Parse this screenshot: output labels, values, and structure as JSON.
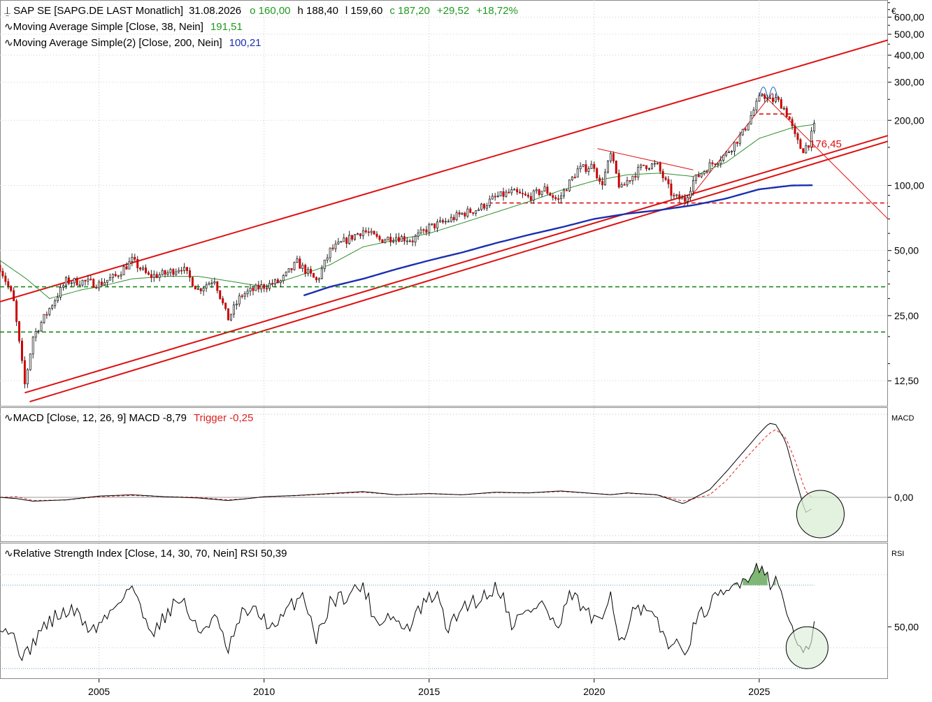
{
  "header": {
    "currency": "€",
    "symbol_title": "SAP SE [SAPG.DE LAST Monatlich]",
    "date": "31.08.2026",
    "open": "o 160,00",
    "high": "h 188,40",
    "low": "l 159,60",
    "close": "c 187,20",
    "change": "+29,52",
    "change_pct": "+18,72%"
  },
  "indicators": {
    "ma1_label": "Moving Average Simple  [Close, 38, Nein]",
    "ma1_value": "191,51",
    "ma2_label": "Moving Average Simple(2)  [Close, 200, Nein]",
    "ma2_value": "100,21",
    "macd_label": "MACD  [Close, 12, 26, 9]  MACD -8,79",
    "macd_trigger": "Trigger -0,25",
    "macd_axis_label": "MACD",
    "rsi_label": "Relative Strength Index  [Close, 14, 30, 70, Nein]  RSI 50,39",
    "rsi_axis_label": "RSI"
  },
  "annotations": {
    "price_label": "176,45"
  },
  "colors": {
    "price_up": "#22aa22",
    "price_down": "#cc0000",
    "ma38": "#2f8f2f",
    "ma200": "#1a2fb0",
    "trend": "#dd1111",
    "support": "#1a8a1a",
    "macd": "#000000",
    "trigger": "#dd2222",
    "circle_fill": "#d9ecd4",
    "rsi_fill": "#6aaa5e"
  },
  "chart_data": [
    {
      "type": "candlestick",
      "title": "SAP SE [SAPG.DE LAST Monatlich]",
      "y_scale": "log",
      "ylim": [
        9.5,
        720
      ],
      "y_ticks": [
        "600,00",
        "500,00",
        "400,00",
        "300,00",
        "200,00",
        "100,00",
        "50,00",
        "25,00",
        "12,50"
      ],
      "y_tick_values": [
        600,
        500,
        400,
        300,
        200,
        100,
        50,
        25,
        12.5
      ],
      "x_ticks": [
        "2005",
        "2010",
        "2015",
        "2020",
        "2025"
      ],
      "x_tick_values": [
        2005,
        2010,
        2015,
        2020,
        2025
      ],
      "xlim": [
        2002.0,
        2028.9
      ],
      "close_anchors": [
        [
          2002.0,
          42
        ],
        [
          2002.4,
          30
        ],
        [
          2002.75,
          12
        ],
        [
          2003.0,
          20
        ],
        [
          2003.5,
          27
        ],
        [
          2004.0,
          36
        ],
        [
          2004.5,
          36
        ],
        [
          2005.0,
          35
        ],
        [
          2005.5,
          38
        ],
        [
          2006.0,
          45
        ],
        [
          2006.5,
          38
        ],
        [
          2007.0,
          39
        ],
        [
          2007.5,
          42
        ],
        [
          2008.0,
          33
        ],
        [
          2008.5,
          37
        ],
        [
          2008.9,
          24
        ],
        [
          2009.3,
          31
        ],
        [
          2009.9,
          34
        ],
        [
          2010.5,
          36
        ],
        [
          2011.0,
          44
        ],
        [
          2011.6,
          36
        ],
        [
          2012.0,
          50
        ],
        [
          2012.5,
          56
        ],
        [
          2013.0,
          62
        ],
        [
          2013.5,
          56
        ],
        [
          2014.0,
          58
        ],
        [
          2014.5,
          56
        ],
        [
          2015.0,
          64
        ],
        [
          2015.5,
          68
        ],
        [
          2016.0,
          74
        ],
        [
          2016.5,
          78
        ],
        [
          2017.0,
          88
        ],
        [
          2017.5,
          93
        ],
        [
          2018.0,
          88
        ],
        [
          2018.5,
          96
        ],
        [
          2018.9,
          85
        ],
        [
          2019.5,
          118
        ],
        [
          2020.0,
          124
        ],
        [
          2020.2,
          98
        ],
        [
          2020.5,
          138
        ],
        [
          2020.8,
          95
        ],
        [
          2021.0,
          105
        ],
        [
          2021.5,
          124
        ],
        [
          2021.9,
          124
        ],
        [
          2022.4,
          88
        ],
        [
          2022.75,
          86
        ],
        [
          2023.0,
          105
        ],
        [
          2023.5,
          124
        ],
        [
          2024.0,
          140
        ],
        [
          2024.5,
          175
        ],
        [
          2024.8,
          218
        ],
        [
          2025.1,
          268
        ],
        [
          2025.3,
          245
        ],
        [
          2025.5,
          250
        ],
        [
          2025.7,
          235
        ],
        [
          2025.9,
          205
        ],
        [
          2026.1,
          165
        ],
        [
          2026.3,
          145
        ],
        [
          2026.5,
          157
        ],
        [
          2026.67,
          187.2
        ]
      ],
      "ma38_anchors": [
        [
          2002.0,
          45
        ],
        [
          2002.8,
          37
        ],
        [
          2003.5,
          30
        ],
        [
          2004.5,
          33
        ],
        [
          2005.0,
          34
        ],
        [
          2006.0,
          37
        ],
        [
          2007.0,
          38
        ],
        [
          2008.0,
          38
        ],
        [
          2009.0,
          36
        ],
        [
          2010.0,
          34
        ],
        [
          2011.0,
          38
        ],
        [
          2012.0,
          43
        ],
        [
          2013.0,
          52
        ],
        [
          2014.0,
          56
        ],
        [
          2015.0,
          60
        ],
        [
          2016.0,
          67
        ],
        [
          2017.0,
          75
        ],
        [
          2018.0,
          84
        ],
        [
          2019.0,
          95
        ],
        [
          2020.0,
          105
        ],
        [
          2021.0,
          112
        ],
        [
          2022.0,
          114
        ],
        [
          2023.0,
          110
        ],
        [
          2024.0,
          128
        ],
        [
          2025.0,
          165
        ],
        [
          2026.0,
          185
        ],
        [
          2026.67,
          191.5
        ]
      ],
      "ma200_anchors": [
        [
          2011.2,
          31
        ],
        [
          2012.0,
          34
        ],
        [
          2013.0,
          37
        ],
        [
          2014.0,
          41
        ],
        [
          2015.0,
          45
        ],
        [
          2016.0,
          49
        ],
        [
          2017.0,
          54
        ],
        [
          2018.0,
          59
        ],
        [
          2019.0,
          64
        ],
        [
          2020.0,
          70
        ],
        [
          2021.0,
          74
        ],
        [
          2022.0,
          77
        ],
        [
          2023.0,
          81
        ],
        [
          2024.0,
          87
        ],
        [
          2025.0,
          96
        ],
        [
          2026.0,
          100
        ],
        [
          2026.67,
          100.2
        ]
      ],
      "channel_upper": [
        [
          2002.0,
          29
        ],
        [
          2028.9,
          470
        ]
      ],
      "channel_lower_a": [
        [
          2002.75,
          11
        ],
        [
          2028.9,
          170
        ]
      ],
      "channel_lower_b": [
        [
          2002.9,
          10
        ],
        [
          2028.9,
          160
        ]
      ],
      "triangle_upper": [
        [
          2020.1,
          148
        ],
        [
          2023.0,
          118
        ]
      ],
      "triangle_lower": [
        [
          2022.7,
          80
        ],
        [
          2025.4,
          268
        ]
      ],
      "breakdown_line": [
        [
          2025.1,
          265
        ],
        [
          2028.9,
          70
        ]
      ],
      "neckline": [
        [
          2025.0,
          214
        ],
        [
          2026.0,
          214
        ]
      ],
      "resistance_dashed": 83,
      "support_dashed": [
        34,
        21
      ],
      "price_label_value": 176.45
    },
    {
      "type": "line",
      "title": "MACD [Close, 12, 26, 9]",
      "zero_tick": "0,00",
      "macd_anchors": [
        [
          2002.0,
          0.0
        ],
        [
          2002.5,
          -1
        ],
        [
          2003.0,
          -3
        ],
        [
          2004.0,
          -2
        ],
        [
          2005.0,
          1
        ],
        [
          2006.0,
          2
        ],
        [
          2007.0,
          0.5
        ],
        [
          2008.0,
          -0.5
        ],
        [
          2008.9,
          -2.5
        ],
        [
          2009.5,
          -1
        ],
        [
          2010.0,
          0.5
        ],
        [
          2011.0,
          1.5
        ],
        [
          2012.0,
          3
        ],
        [
          2013.0,
          4.5
        ],
        [
          2014.0,
          2
        ],
        [
          2015.0,
          3
        ],
        [
          2016.0,
          2
        ],
        [
          2017.0,
          4
        ],
        [
          2018.0,
          3.5
        ],
        [
          2019.0,
          5
        ],
        [
          2020.0,
          3
        ],
        [
          2020.5,
          2
        ],
        [
          2021.0,
          3.5
        ],
        [
          2021.9,
          2
        ],
        [
          2022.7,
          -5
        ],
        [
          2023.5,
          6
        ],
        [
          2024.0,
          20
        ],
        [
          2024.5,
          35
        ],
        [
          2025.0,
          50
        ],
        [
          2025.3,
          58
        ],
        [
          2025.5,
          57
        ],
        [
          2025.8,
          44
        ],
        [
          2026.1,
          15
        ],
        [
          2026.4,
          -12
        ],
        [
          2026.6,
          -8.79
        ]
      ],
      "trigger_anchors": [
        [
          2002.0,
          0.0
        ],
        [
          2002.5,
          0.5
        ],
        [
          2003.0,
          -2.5
        ],
        [
          2004.0,
          -2
        ],
        [
          2005.0,
          0.5
        ],
        [
          2006.0,
          1.5
        ],
        [
          2007.0,
          0.5
        ],
        [
          2008.0,
          0
        ],
        [
          2008.9,
          -2
        ],
        [
          2009.5,
          -1
        ],
        [
          2010.0,
          0.5
        ],
        [
          2011.0,
          1.3
        ],
        [
          2012.0,
          2.7
        ],
        [
          2013.0,
          4
        ],
        [
          2014.0,
          2
        ],
        [
          2015.0,
          2.8
        ],
        [
          2016.0,
          2
        ],
        [
          2017.0,
          3.7
        ],
        [
          2018.0,
          3.4
        ],
        [
          2019.0,
          4.6
        ],
        [
          2020.0,
          3
        ],
        [
          2020.5,
          2.2
        ],
        [
          2021.0,
          3.2
        ],
        [
          2021.9,
          2
        ],
        [
          2022.7,
          -3
        ],
        [
          2023.5,
          2
        ],
        [
          2024.0,
          13
        ],
        [
          2024.5,
          28
        ],
        [
          2025.0,
          42
        ],
        [
          2025.3,
          50
        ],
        [
          2025.5,
          53
        ],
        [
          2025.8,
          47
        ],
        [
          2026.1,
          28
        ],
        [
          2026.4,
          5
        ],
        [
          2026.6,
          -0.25
        ]
      ],
      "ylim": [
        -35,
        70
      ]
    },
    {
      "type": "line",
      "title": "Relative Strength Index [Close, 14, 30, 70, Nein]",
      "y_tick": "50,00",
      "y_tick_value": 50,
      "overbought": 70,
      "oversold": 30,
      "rsi_anchors": [
        [
          2002.0,
          52
        ],
        [
          2002.3,
          48
        ],
        [
          2002.75,
          35
        ],
        [
          2003.2,
          48
        ],
        [
          2003.7,
          55
        ],
        [
          2004.2,
          58
        ],
        [
          2004.8,
          48
        ],
        [
          2005.3,
          56
        ],
        [
          2005.7,
          65
        ],
        [
          2006.0,
          70
        ],
        [
          2006.3,
          56
        ],
        [
          2006.7,
          48
        ],
        [
          2007.1,
          58
        ],
        [
          2007.5,
          64
        ],
        [
          2008.0,
          47
        ],
        [
          2008.5,
          55
        ],
        [
          2008.9,
          38
        ],
        [
          2009.4,
          58
        ],
        [
          2009.9,
          56
        ],
        [
          2010.3,
          48
        ],
        [
          2010.8,
          60
        ],
        [
          2011.2,
          66
        ],
        [
          2011.6,
          44
        ],
        [
          2012.0,
          62
        ],
        [
          2012.6,
          66
        ],
        [
          2013.0,
          70
        ],
        [
          2013.4,
          52
        ],
        [
          2013.8,
          56
        ],
        [
          2014.3,
          48
        ],
        [
          2014.8,
          60
        ],
        [
          2015.2,
          66
        ],
        [
          2015.6,
          48
        ],
        [
          2016.0,
          60
        ],
        [
          2016.6,
          64
        ],
        [
          2017.1,
          70
        ],
        [
          2017.5,
          52
        ],
        [
          2017.9,
          56
        ],
        [
          2018.4,
          62
        ],
        [
          2018.9,
          48
        ],
        [
          2019.3,
          66
        ],
        [
          2019.8,
          56
        ],
        [
          2020.2,
          50
        ],
        [
          2020.5,
          68
        ],
        [
          2020.8,
          42
        ],
        [
          2021.2,
          58
        ],
        [
          2021.7,
          56
        ],
        [
          2022.2,
          44
        ],
        [
          2022.7,
          38
        ],
        [
          2023.2,
          55
        ],
        [
          2023.6,
          62
        ],
        [
          2024.0,
          66
        ],
        [
          2024.4,
          72
        ],
        [
          2024.8,
          76
        ],
        [
          2025.1,
          81
        ],
        [
          2025.3,
          72
        ],
        [
          2025.6,
          70
        ],
        [
          2025.9,
          55
        ],
        [
          2026.2,
          38
        ],
        [
          2026.4,
          36
        ],
        [
          2026.67,
          50.4
        ]
      ],
      "ylim": [
        25,
        90
      ]
    }
  ]
}
